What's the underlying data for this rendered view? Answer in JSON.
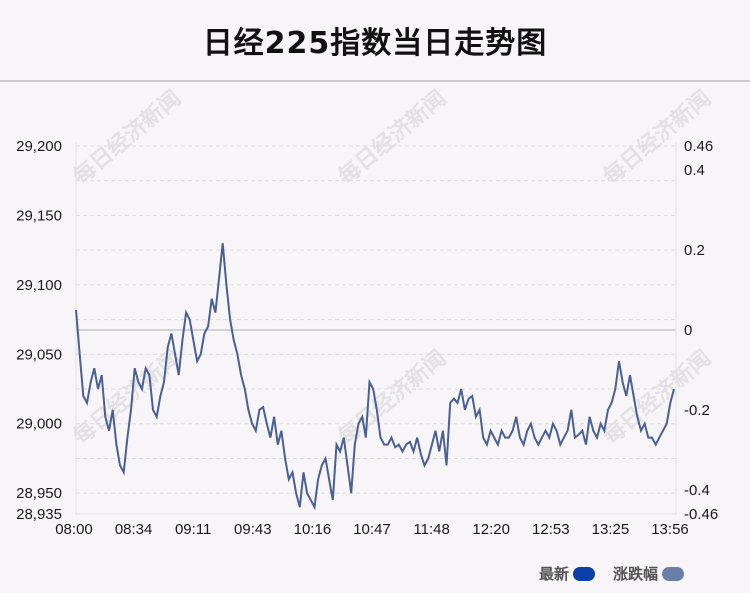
{
  "title": "日经225指数当日走势图",
  "watermark": "每日经济新闻",
  "legend": [
    {
      "name": "最新",
      "color": "#0a3fa8"
    },
    {
      "name": "涨跌幅",
      "color": "#6a7fa8"
    }
  ],
  "chart_data": {
    "type": "line",
    "line_color": "#4a5f94",
    "zero_line_color": "#c8c8c8",
    "grid": true,
    "x_ticks": [
      "08:00",
      "08:34",
      "09:11",
      "09:43",
      "10:16",
      "10:47",
      "11:48",
      "12:20",
      "12:53",
      "13:25",
      "13:56"
    ],
    "y_left": {
      "min": 28935,
      "max": 29200,
      "ticks": [
        "29,200",
        "29,150",
        "29,100",
        "29,050",
        "29,000",
        "28,950",
        "28,935"
      ]
    },
    "y_right": {
      "min": -0.46,
      "max": 0.46,
      "ticks": [
        "0.46",
        "0.4",
        "0.2",
        "0",
        "-0.2",
        "-0.4",
        "-0.46"
      ]
    },
    "series": [
      {
        "values": [
          29082,
          29050,
          29020,
          29015,
          29030,
          29040,
          29025,
          29035,
          29005,
          28995,
          29010,
          28985,
          28970,
          28965,
          28990,
          29010,
          29040,
          29030,
          29025,
          29040,
          29035,
          29010,
          29005,
          29020,
          29030,
          29055,
          29065,
          29050,
          29035,
          29060,
          29080,
          29075,
          29060,
          29045,
          29050,
          29065,
          29070,
          29090,
          29080,
          29105,
          29130,
          29100,
          29075,
          29060,
          29050,
          29035,
          29025,
          29010,
          29000,
          28995,
          29010,
          29012,
          29000,
          28990,
          29005,
          28985,
          28995,
          28975,
          28960,
          28965,
          28950,
          28940,
          28965,
          28950,
          28945,
          28940,
          28960,
          28970,
          28975,
          28960,
          28945,
          28985,
          28980,
          28990,
          28970,
          28950,
          28985,
          29000,
          29005,
          28990,
          29030,
          29025,
          29010,
          28990,
          28985,
          28985,
          28990,
          28983,
          28985,
          28980,
          28985,
          28987,
          28980,
          28990,
          28978,
          28970,
          28975,
          28985,
          28995,
          28980,
          28995,
          28970,
          29015,
          29018,
          29015,
          29025,
          29010,
          29018,
          29020,
          29005,
          29010,
          28990,
          28985,
          28995,
          28990,
          28985,
          28995,
          28990,
          28990,
          28995,
          29005,
          28990,
          28985,
          28995,
          29000,
          28990,
          28985,
          28990,
          28995,
          28990,
          29000,
          28995,
          28985,
          28990,
          28995,
          29010,
          28990,
          28992,
          28995,
          28985,
          29005,
          28995,
          28990,
          29000,
          28995,
          29010,
          29015,
          29025,
          29045,
          29030,
          29020,
          29035,
          29020,
          29005,
          28995,
          29000,
          28990,
          28990,
          28985,
          28990,
          28995,
          29000,
          29015,
          29025
        ]
      }
    ]
  }
}
